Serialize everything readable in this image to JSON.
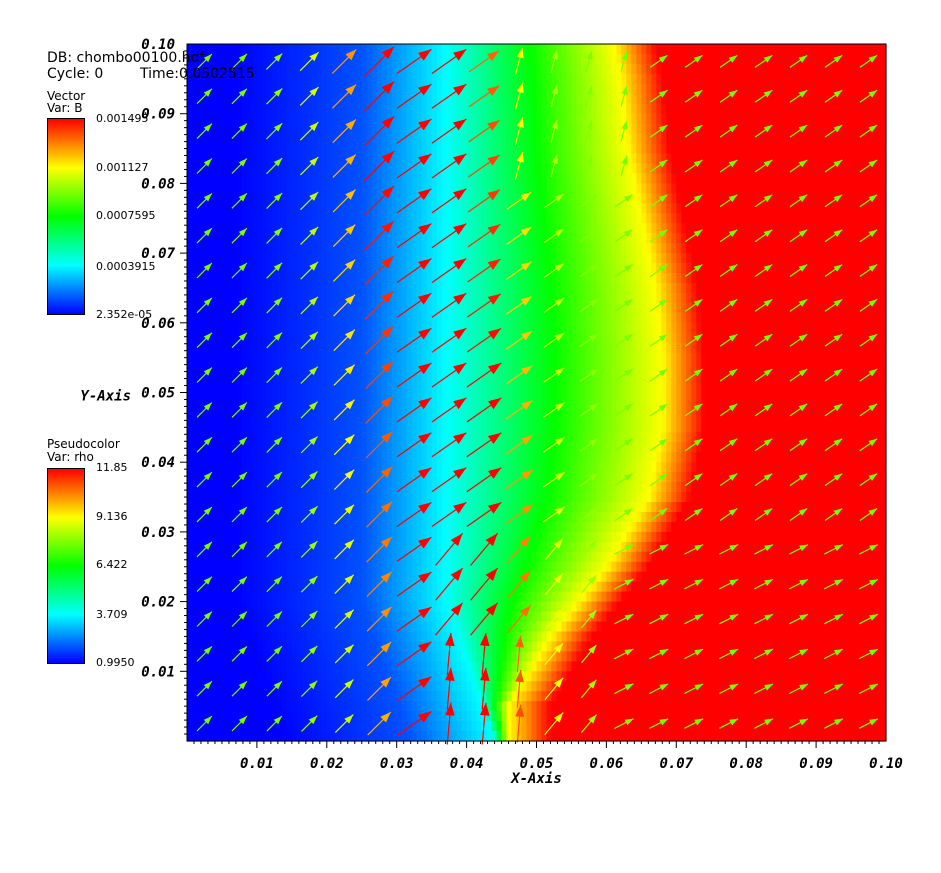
{
  "header": {
    "db_label": "DB: chombo00100.hdf",
    "cycle_label": "Cycle: 0",
    "time_label": "Time:0.0502515"
  },
  "legends": {
    "vector": {
      "plot_type": "Vector",
      "var_label": "Var: B",
      "ticks": [
        "0.001495",
        "0.001127",
        "0.0007595",
        "0.0003915",
        "2.352e-05"
      ]
    },
    "pseudocolor": {
      "plot_type": "Pseudocolor",
      "var_label": "Var: rho",
      "ticks": [
        "11.85",
        "9.136",
        "6.422",
        "3.709",
        "0.9950"
      ]
    }
  },
  "colormap": [
    "#0000ff",
    "#00ffff",
    "#00ff00",
    "#ffff00",
    "#ff0000"
  ],
  "chart_data": {
    "type": "heatmap",
    "xlabel": "X-Axis",
    "ylabel": "Y-Axis",
    "xlim": [
      0.0,
      0.1
    ],
    "ylim": [
      0.0,
      0.1
    ],
    "x_tick_labels": [
      "0.01",
      "0.02",
      "0.03",
      "0.04",
      "0.05",
      "0.06",
      "0.07",
      "0.08",
      "0.09",
      "0.10"
    ],
    "y_tick_labels": [
      "0.01",
      "0.02",
      "0.03",
      "0.04",
      "0.05",
      "0.06",
      "0.07",
      "0.08",
      "0.09",
      "0.10"
    ],
    "x_tick_values": [
      0.01,
      0.02,
      0.03,
      0.04,
      0.05,
      0.06,
      0.07,
      0.08,
      0.09,
      0.1
    ],
    "y_tick_values": [
      0.01,
      0.02,
      0.03,
      0.04,
      0.05,
      0.06,
      0.07,
      0.08,
      0.09,
      0.1
    ],
    "pseudocolor": {
      "variable": "rho",
      "min": 0.995,
      "max": 11.85,
      "description_levels": {
        "low_region": "x < ~0.035 (blue, rho ~1)",
        "transition_cyan": "x ~0.04 (rho ~3.7)",
        "green_band": "x ~0.045-0.06 (rho ~6.4)",
        "yellow_front": "x ~0.065 at y 0.05, curving to x ~0.05 near y 0.01 (rho ~9.1)",
        "high_region": "x > ~0.07 (red, rho ~11.85)"
      },
      "front_profile": [
        {
          "y": 0.005,
          "x": 0.046
        },
        {
          "y": 0.015,
          "x": 0.052
        },
        {
          "y": 0.025,
          "x": 0.06
        },
        {
          "y": 0.035,
          "x": 0.066
        },
        {
          "y": 0.045,
          "x": 0.068
        },
        {
          "y": 0.055,
          "x": 0.068
        },
        {
          "y": 0.065,
          "x": 0.067
        },
        {
          "y": 0.075,
          "x": 0.065
        },
        {
          "y": 0.085,
          "x": 0.063
        },
        {
          "y": 0.095,
          "x": 0.062
        },
        {
          "y": 0.1,
          "x": 0.061
        }
      ]
    },
    "vector": {
      "variable": "B",
      "min": 2.352e-05,
      "max": 0.001495,
      "grid_step": 0.005,
      "general_direction": "up-right (approx. 30-60 degrees), strongest (red) along x ~0.03-0.045, weaker (green/cyan) at edges"
    }
  }
}
